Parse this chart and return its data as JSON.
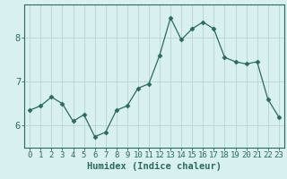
{
  "x": [
    0,
    1,
    2,
    3,
    4,
    5,
    6,
    7,
    8,
    9,
    10,
    11,
    12,
    13,
    14,
    15,
    16,
    17,
    18,
    19,
    20,
    21,
    22,
    23
  ],
  "y": [
    6.35,
    6.45,
    6.65,
    6.5,
    6.1,
    6.25,
    5.75,
    5.85,
    6.35,
    6.45,
    6.85,
    6.95,
    7.6,
    8.45,
    7.95,
    8.2,
    8.35,
    8.2,
    7.55,
    7.45,
    7.4,
    7.45,
    6.6,
    6.2
  ],
  "line_color": "#2a6b5e",
  "marker": "D",
  "marker_size": 2.5,
  "bg_color": "#d8f0f0",
  "grid_color": "#b8d4d4",
  "axis_color": "#2a6b5e",
  "xlabel": "Humidex (Indice chaleur)",
  "ylim": [
    5.5,
    8.75
  ],
  "xlim": [
    -0.5,
    23.5
  ],
  "yticks": [
    6,
    7,
    8
  ],
  "xticks": [
    0,
    1,
    2,
    3,
    4,
    5,
    6,
    7,
    8,
    9,
    10,
    11,
    12,
    13,
    14,
    15,
    16,
    17,
    18,
    19,
    20,
    21,
    22,
    23
  ],
  "xlabel_fontsize": 7.5,
  "tick_fontsize": 6.5,
  "ytick_fontsize": 7.5
}
